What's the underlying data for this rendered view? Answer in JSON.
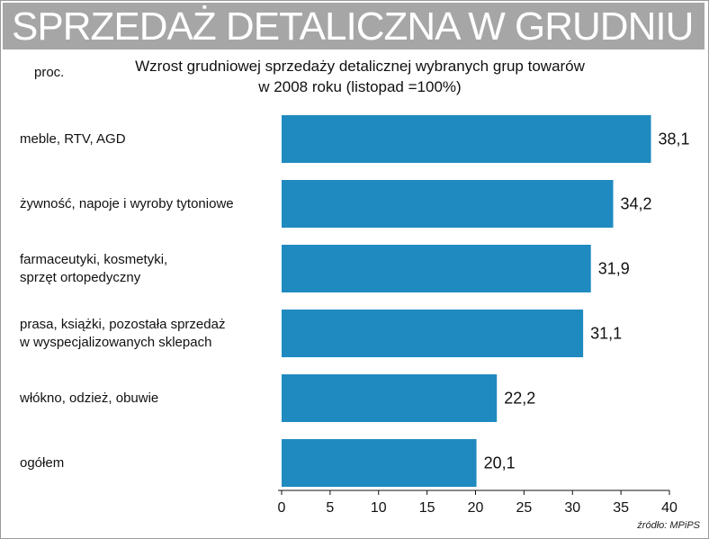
{
  "header": {
    "banner": "SPRZEDAŻ DETALICZNA W GRUDNIU"
  },
  "chart_data": {
    "type": "bar",
    "orientation": "horizontal",
    "title": "Wzrost grudniowej sprzedaży detalicznej wybranych grup towarów",
    "subtitle": "w 2008 roku (listopad =100%)",
    "unit_label": "proc.",
    "categories": [
      [
        "meble, RTV, AGD"
      ],
      [
        "żywność, napoje i wyroby tytoniowe"
      ],
      [
        "farmaceutyki, kosmetyki,",
        "sprzęt ortopedyczny"
      ],
      [
        "prasa, książki, pozostała sprzedaż",
        "w wyspecjalizowanych sklepach"
      ],
      [
        "włókno, odzież, obuwie"
      ],
      [
        "ogółem"
      ]
    ],
    "values": [
      38.1,
      34.2,
      31.9,
      31.1,
      22.2,
      20.1
    ],
    "value_labels": [
      "38,1",
      "34,2",
      "31,9",
      "31,1",
      "22,2",
      "20,1"
    ],
    "xlim": [
      0,
      40
    ],
    "xticks": [
      "0",
      "5",
      "10",
      "15",
      "20",
      "25",
      "30",
      "35",
      "40"
    ],
    "grid": false,
    "bar_color": "#1f8ac0"
  },
  "source": "źródło: MPiPS"
}
